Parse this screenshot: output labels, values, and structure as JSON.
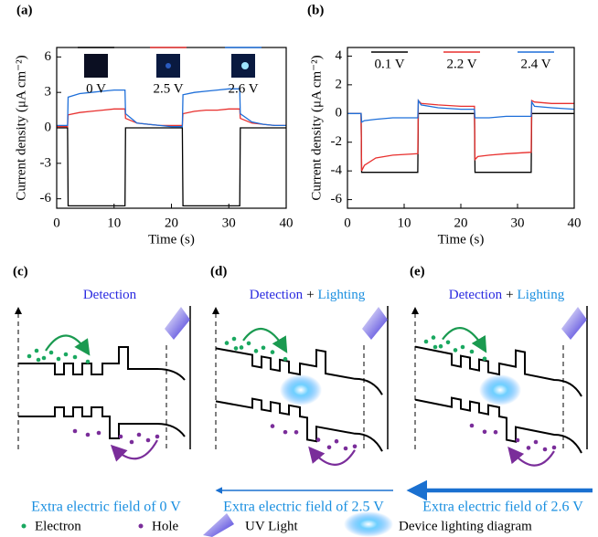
{
  "chart_data": [
    {
      "type": "line",
      "panel": "(a)",
      "xlabel": "Time (s)",
      "ylabel": "Current density (μA cm⁻²)",
      "xlim": [
        0,
        40
      ],
      "ylim": [
        -6.8,
        6.8
      ],
      "xticks": [
        0,
        10,
        20,
        30,
        40
      ],
      "yticks": [
        -6,
        -3,
        0,
        3,
        6
      ],
      "x": [
        0,
        1.9,
        2,
        4,
        6,
        8,
        10,
        11.9,
        12,
        14,
        16,
        18,
        20,
        21.9,
        22,
        24,
        26,
        28,
        30,
        31.9,
        32,
        34,
        36,
        38,
        40
      ],
      "series": [
        {
          "name": "0 V",
          "color": "#000000",
          "values": [
            0,
            0,
            -6.6,
            -6.6,
            -6.6,
            -6.6,
            -6.6,
            -6.6,
            0,
            0,
            0,
            0,
            0,
            0,
            -6.6,
            -6.6,
            -6.6,
            -6.6,
            -6.6,
            -6.6,
            0,
            0,
            0,
            0,
            0
          ]
        },
        {
          "name": "2.5 V",
          "color": "#e8302e",
          "values": [
            0.1,
            0.1,
            1.1,
            1.3,
            1.4,
            1.5,
            1.6,
            1.6,
            0.8,
            0.4,
            0.3,
            0.2,
            0.2,
            0.2,
            1.2,
            1.4,
            1.5,
            1.5,
            1.6,
            1.6,
            0.8,
            0.4,
            0.3,
            0.2,
            0.2
          ]
        },
        {
          "name": "2.6 V",
          "color": "#1e6fd9",
          "values": [
            0.2,
            0.2,
            2.6,
            2.9,
            3.0,
            3.1,
            3.2,
            3.2,
            1.2,
            0.4,
            0.3,
            0.2,
            0.1,
            0.1,
            2.8,
            3.0,
            3.1,
            3.2,
            3.3,
            3.3,
            1.2,
            0.5,
            0.3,
            0.2,
            0.2
          ]
        }
      ]
    },
    {
      "type": "line",
      "panel": "(b)",
      "xlabel": "Time (s)",
      "ylabel": "Current density (μA cm⁻²)",
      "xlim": [
        0,
        40
      ],
      "ylim": [
        -6.6,
        4.6
      ],
      "xticks": [
        0,
        10,
        20,
        30,
        40
      ],
      "yticks": [
        -6,
        -4,
        -2,
        0,
        2,
        4
      ],
      "x": [
        0,
        2.4,
        2.5,
        3,
        5,
        8,
        12.4,
        12.5,
        13,
        16,
        20,
        22.4,
        22.5,
        23,
        25,
        28,
        32.4,
        32.5,
        33,
        36,
        40
      ],
      "series": [
        {
          "name": "0.1 V",
          "color": "#000000",
          "values": [
            0,
            0,
            -4.1,
            -4.1,
            -4.1,
            -4.1,
            -4.1,
            0,
            0,
            0,
            0,
            0,
            -4.1,
            -4.1,
            -4.1,
            -4.1,
            -4.1,
            0,
            0,
            0,
            0
          ]
        },
        {
          "name": "2.2 V",
          "color": "#e8302e",
          "values": [
            0,
            0,
            -4.0,
            -3.6,
            -3.1,
            -2.9,
            -2.8,
            0.9,
            0.7,
            0.6,
            0.5,
            0.5,
            -3.2,
            -3.0,
            -2.9,
            -2.8,
            -2.7,
            0.9,
            0.8,
            0.7,
            0.7
          ]
        },
        {
          "name": "2.4 V",
          "color": "#1e6fd9",
          "values": [
            0,
            0,
            -0.6,
            -0.5,
            -0.4,
            -0.3,
            -0.3,
            0.9,
            0.6,
            0.4,
            0.3,
            0.3,
            -0.3,
            -0.3,
            -0.3,
            -0.2,
            -0.2,
            0.8,
            0.5,
            0.4,
            0.3
          ]
        }
      ]
    }
  ],
  "diagrams": [
    {
      "panel": "(c)",
      "title": [
        "Detection"
      ],
      "caption": "Extra electric field of 0 V"
    },
    {
      "panel": "(d)",
      "title": [
        "Detection",
        "+",
        "Lighting"
      ],
      "caption": "Extra electric field of 2.5 V"
    },
    {
      "panel": "(e)",
      "title": [
        "Detection",
        "+",
        "Lighting"
      ],
      "caption": "Extra electric field of 2.6 V"
    }
  ],
  "legend": [
    "Electron",
    "Hole",
    "UV Light",
    "Device lighting diagram"
  ]
}
